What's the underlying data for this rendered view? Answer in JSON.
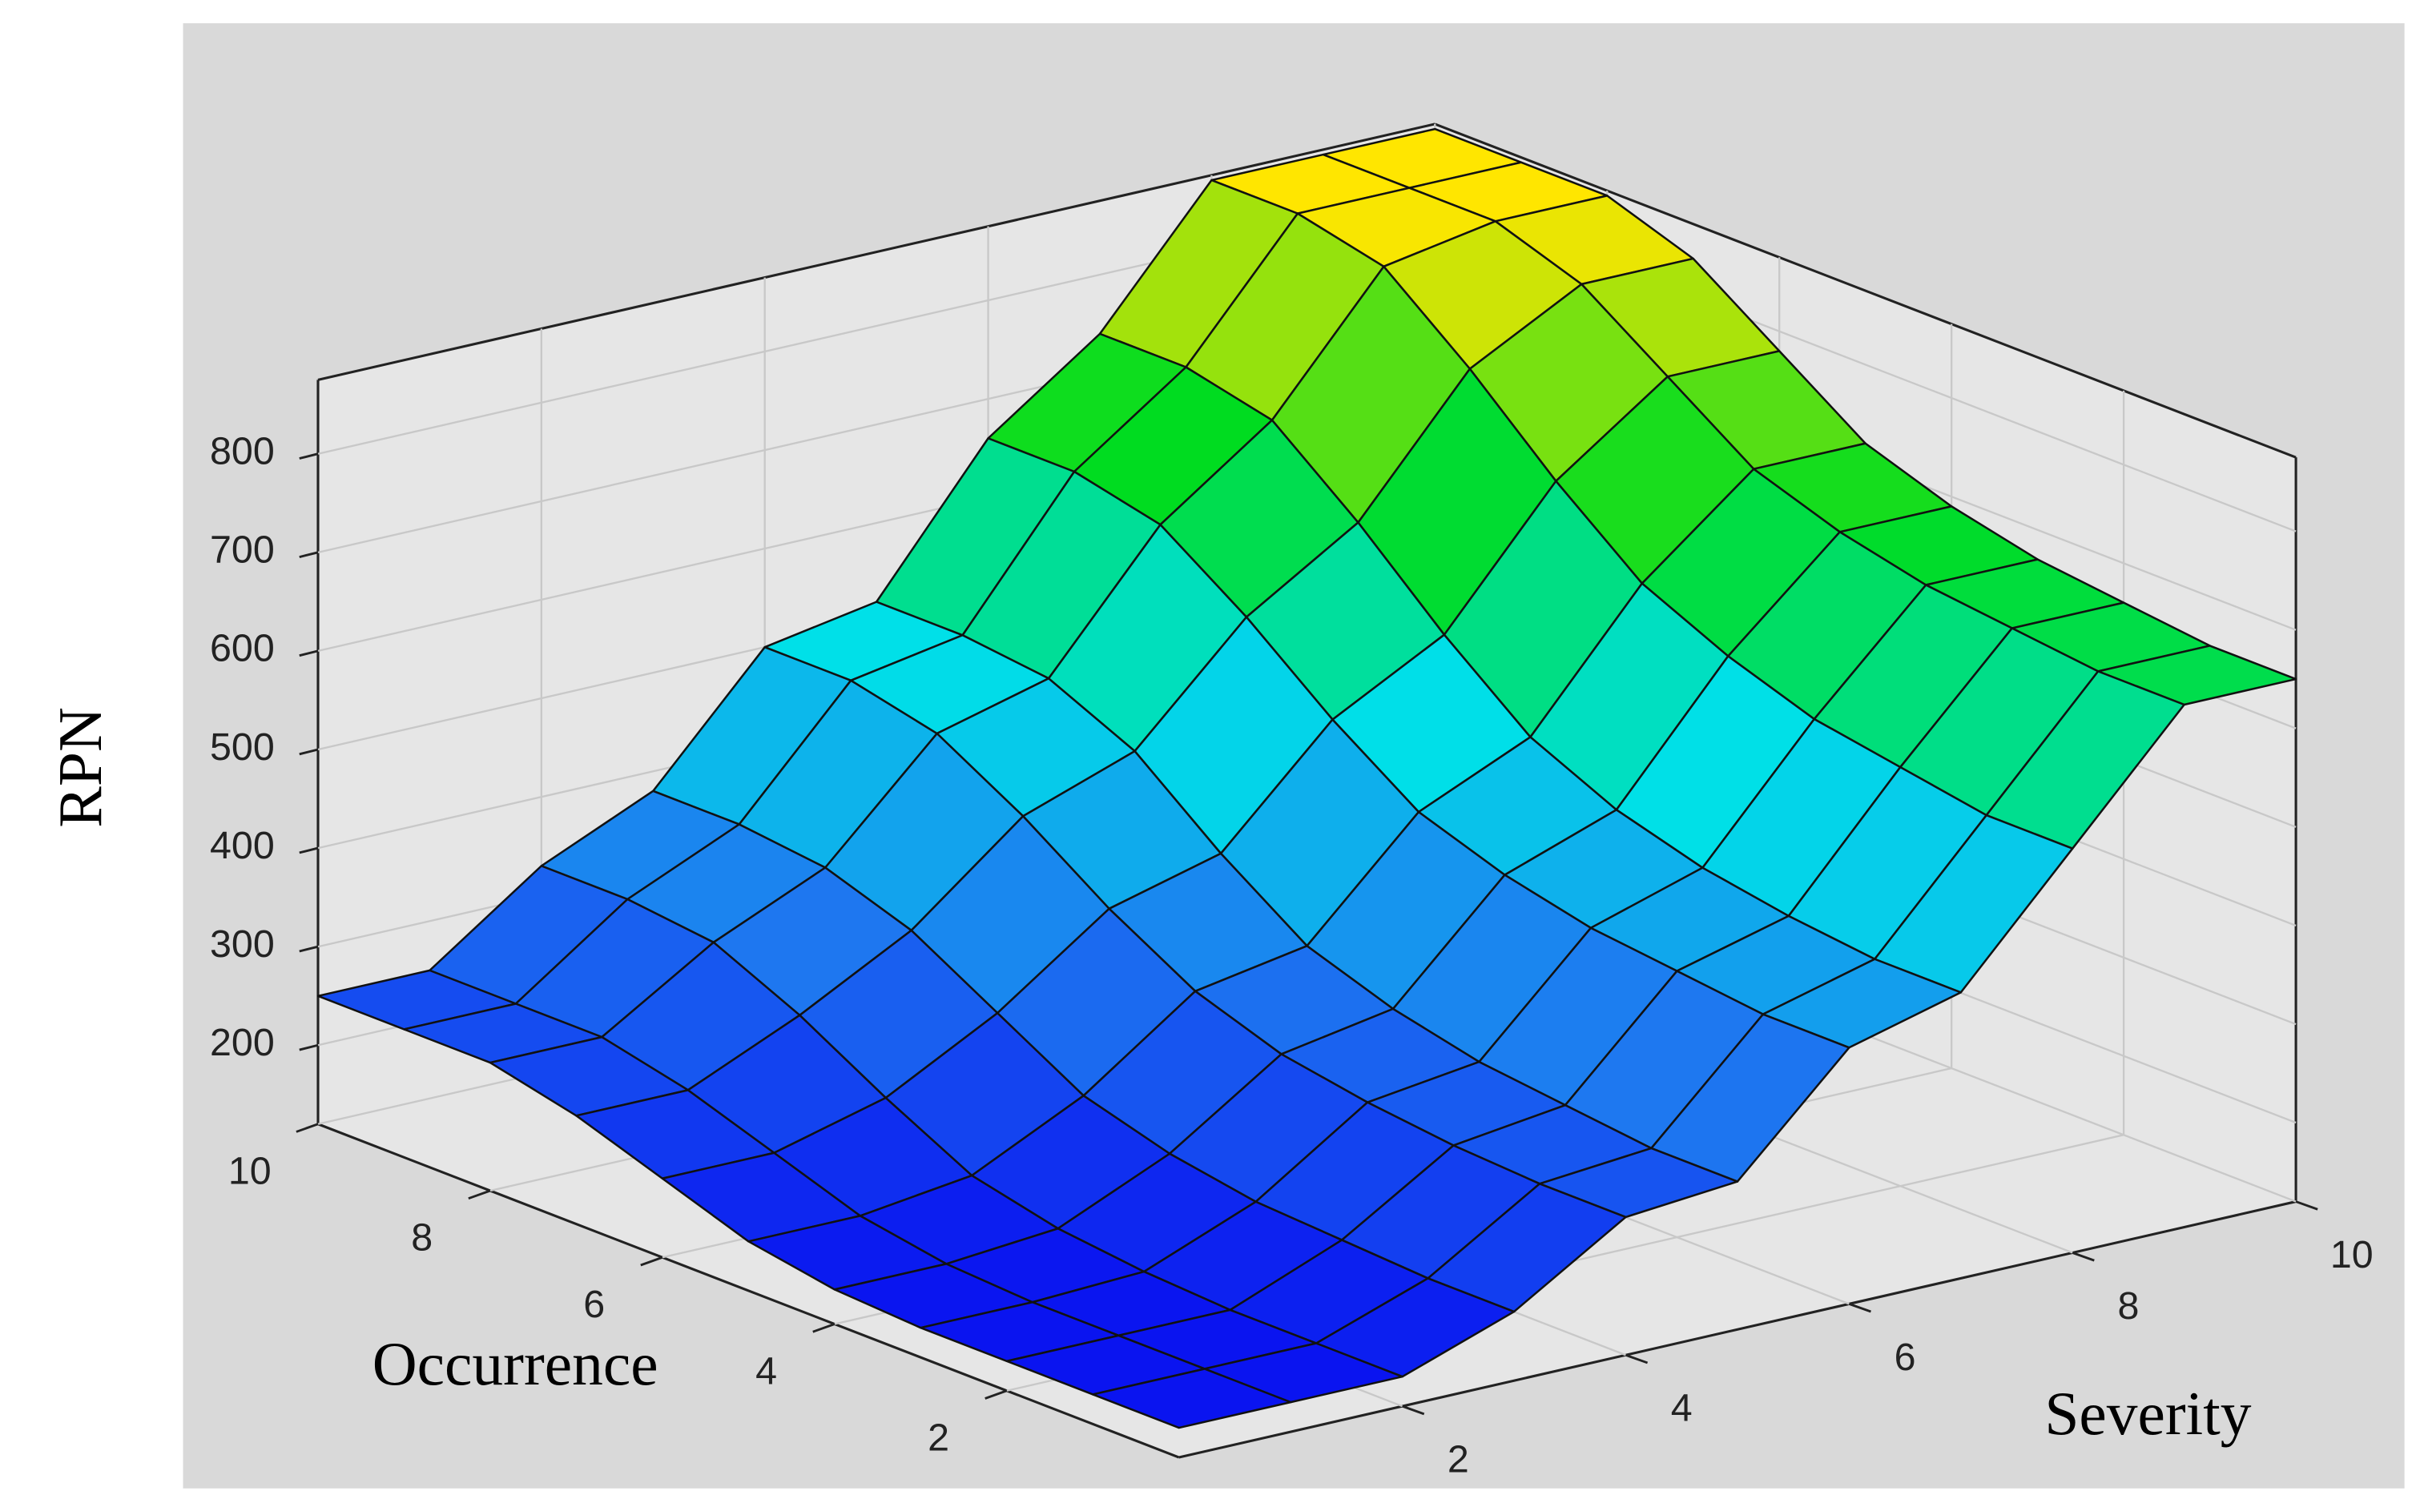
{
  "chart_data": {
    "type": "surface",
    "x_label": "Severity",
    "y_label": "Occurrence",
    "z_label": "RPN",
    "x": [
      0,
      1,
      2,
      3,
      4,
      5,
      6,
      7,
      8,
      9,
      10
    ],
    "y": [
      0,
      1,
      2,
      3,
      4,
      5,
      6,
      7,
      8,
      9,
      10
    ],
    "z": [
      [
        150,
        150,
        150,
        190,
        260,
        270,
        380,
        410,
        530,
        650,
        650
      ],
      [
        150,
        150,
        150,
        190,
        260,
        270,
        380,
        410,
        530,
        650,
        650
      ],
      [
        150,
        150,
        150,
        195,
        265,
        280,
        390,
        420,
        545,
        660,
        660
      ],
      [
        150,
        150,
        155,
        200,
        275,
        290,
        400,
        435,
        560,
        670,
        670
      ],
      [
        155,
        155,
        165,
        215,
        290,
        310,
        420,
        460,
        590,
        690,
        690
      ],
      [
        170,
        170,
        185,
        240,
        320,
        340,
        450,
        500,
        630,
        720,
        720
      ],
      [
        200,
        200,
        230,
        290,
        370,
        400,
        510,
        570,
        700,
        780,
        780
      ],
      [
        230,
        230,
        280,
        340,
        430,
        470,
        580,
        650,
        780,
        840,
        840
      ],
      [
        250,
        250,
        320,
        370,
        480,
        510,
        640,
        720,
        850,
        870,
        870
      ],
      [
        250,
        250,
        330,
        380,
        500,
        520,
        660,
        740,
        870,
        870,
        870
      ],
      [
        250,
        250,
        330,
        380,
        500,
        520,
        660,
        740,
        870,
        870,
        870
      ]
    ],
    "xlim": [
      0,
      10
    ],
    "ylim": [
      0,
      10
    ],
    "zlim": [
      120,
      875
    ],
    "xticks": [
      2,
      4,
      6,
      8,
      10
    ],
    "yticks": [
      2,
      4,
      6,
      8,
      10
    ],
    "zticks": [
      200,
      300,
      400,
      500,
      600,
      700,
      800
    ],
    "colormap": [
      "#0a14f0",
      "#1e78f0",
      "#00e0e8",
      "#00dc20",
      "#ffe600"
    ],
    "grid": true
  }
}
